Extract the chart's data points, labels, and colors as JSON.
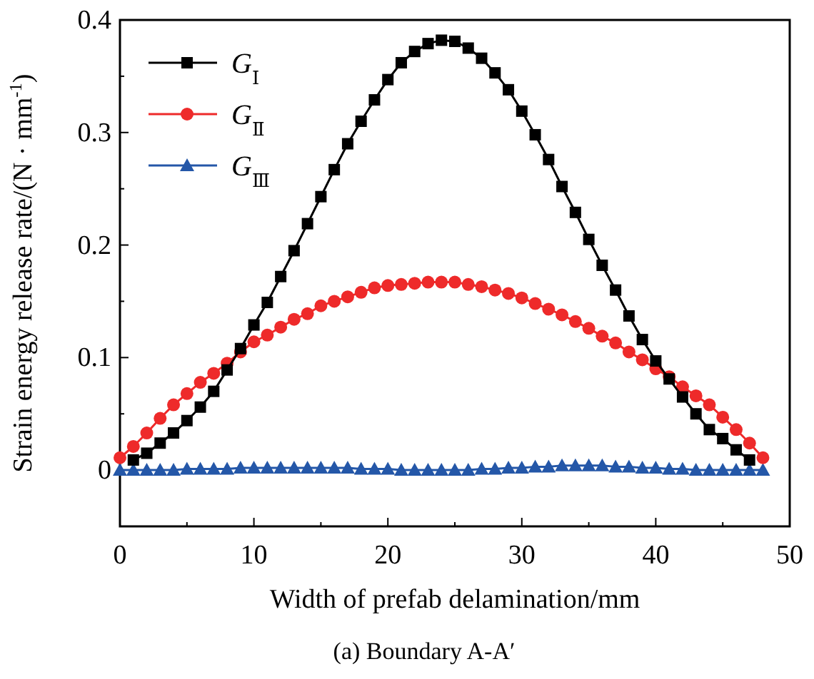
{
  "chart_data": {
    "type": "line",
    "xlabel": "Width of prefab delamination/mm",
    "ylabel": "Strain energy release rate/(N · mm$^{-1}$)",
    "annotations": [
      "(a) Boundary A-A′"
    ],
    "xlim": [
      0,
      50
    ],
    "xticks": [
      0,
      {
        "value": 5,
        "label": null
      },
      10,
      {
        "value": 15,
        "label": null
      },
      20,
      {
        "value": 25,
        "label": null
      },
      30,
      {
        "value": 35,
        "label": null
      },
      40,
      {
        "value": 45,
        "label": null
      },
      50
    ],
    "ylim": [
      -0.05,
      0.4
    ],
    "yticks": [
      {
        "value": -0.05,
        "label": null
      },
      0,
      {
        "value": 0.05,
        "label": null
      },
      0.1,
      {
        "value": 0.15,
        "label": null
      },
      0.2,
      {
        "value": 0.25,
        "label": null
      },
      0.3,
      {
        "value": 0.35,
        "label": null
      },
      0.4
    ],
    "grid": false,
    "legend": "top left",
    "line_style": "solid",
    "series": [
      {
        "name": "G$_{Ⅰ}$",
        "color": "#000000",
        "marker": "square",
        "x": [
          1,
          2,
          3,
          4,
          5,
          6,
          7,
          8,
          9,
          10,
          11,
          12,
          13,
          14,
          15,
          16,
          17,
          18,
          19,
          20,
          21,
          22,
          23,
          24,
          25,
          26,
          27,
          28,
          29,
          30,
          31,
          32,
          33,
          34,
          35,
          36,
          37,
          38,
          39,
          40,
          41,
          42,
          43,
          44,
          45,
          46,
          47
        ],
        "values": [
          0.009,
          0.015,
          0.024,
          0.033,
          0.044,
          0.056,
          0.07,
          0.089,
          0.108,
          0.129,
          0.149,
          0.172,
          0.195,
          0.219,
          0.243,
          0.267,
          0.29,
          0.31,
          0.329,
          0.347,
          0.362,
          0.372,
          0.379,
          0.382,
          0.381,
          0.375,
          0.366,
          0.353,
          0.338,
          0.319,
          0.298,
          0.276,
          0.252,
          0.229,
          0.205,
          0.182,
          0.16,
          0.137,
          0.116,
          0.097,
          0.081,
          0.065,
          0.05,
          0.036,
          0.028,
          0.018,
          0.009
        ]
      },
      {
        "name": "G$_{Ⅱ}$",
        "color": "#ee2a2a",
        "marker": "circle",
        "x": [
          0,
          1,
          2,
          3,
          4,
          5,
          6,
          7,
          8,
          9,
          10,
          11,
          12,
          13,
          14,
          15,
          16,
          17,
          18,
          19,
          20,
          21,
          22,
          23,
          24,
          25,
          26,
          27,
          28,
          29,
          30,
          31,
          32,
          33,
          34,
          35,
          36,
          37,
          38,
          39,
          40,
          41,
          42,
          43,
          44,
          45,
          46,
          47,
          48
        ],
        "values": [
          0.011,
          0.021,
          0.033,
          0.046,
          0.058,
          0.068,
          0.078,
          0.086,
          0.095,
          0.105,
          0.114,
          0.12,
          0.127,
          0.134,
          0.139,
          0.146,
          0.15,
          0.154,
          0.158,
          0.162,
          0.164,
          0.165,
          0.166,
          0.167,
          0.167,
          0.167,
          0.165,
          0.163,
          0.16,
          0.157,
          0.153,
          0.148,
          0.143,
          0.138,
          0.132,
          0.126,
          0.119,
          0.113,
          0.105,
          0.098,
          0.09,
          0.083,
          0.074,
          0.066,
          0.058,
          0.047,
          0.036,
          0.024,
          0.011
        ]
      },
      {
        "name": "G$_{Ⅲ}$",
        "color": "#2457a8",
        "marker": "triangle",
        "x": [
          0,
          1,
          2,
          3,
          4,
          5,
          6,
          7,
          8,
          9,
          10,
          11,
          12,
          13,
          14,
          15,
          16,
          17,
          18,
          19,
          20,
          21,
          22,
          23,
          24,
          25,
          26,
          27,
          28,
          29,
          30,
          31,
          32,
          33,
          34,
          35,
          36,
          37,
          38,
          39,
          40,
          41,
          42,
          43,
          44,
          45,
          46,
          47,
          48
        ],
        "values": [
          0,
          0,
          0,
          0,
          0,
          0.001,
          0.001,
          0.001,
          0.001,
          0.002,
          0.002,
          0.002,
          0.002,
          0.002,
          0.002,
          0.002,
          0.002,
          0.002,
          0.001,
          0.001,
          0.001,
          0,
          0,
          0,
          0,
          0,
          0,
          0.001,
          0.001,
          0.002,
          0.002,
          0.003,
          0.003,
          0.004,
          0.004,
          0.004,
          0.004,
          0.003,
          0.003,
          0.002,
          0.002,
          0.001,
          0.001,
          0,
          0,
          0,
          0,
          0,
          0
        ]
      }
    ]
  }
}
